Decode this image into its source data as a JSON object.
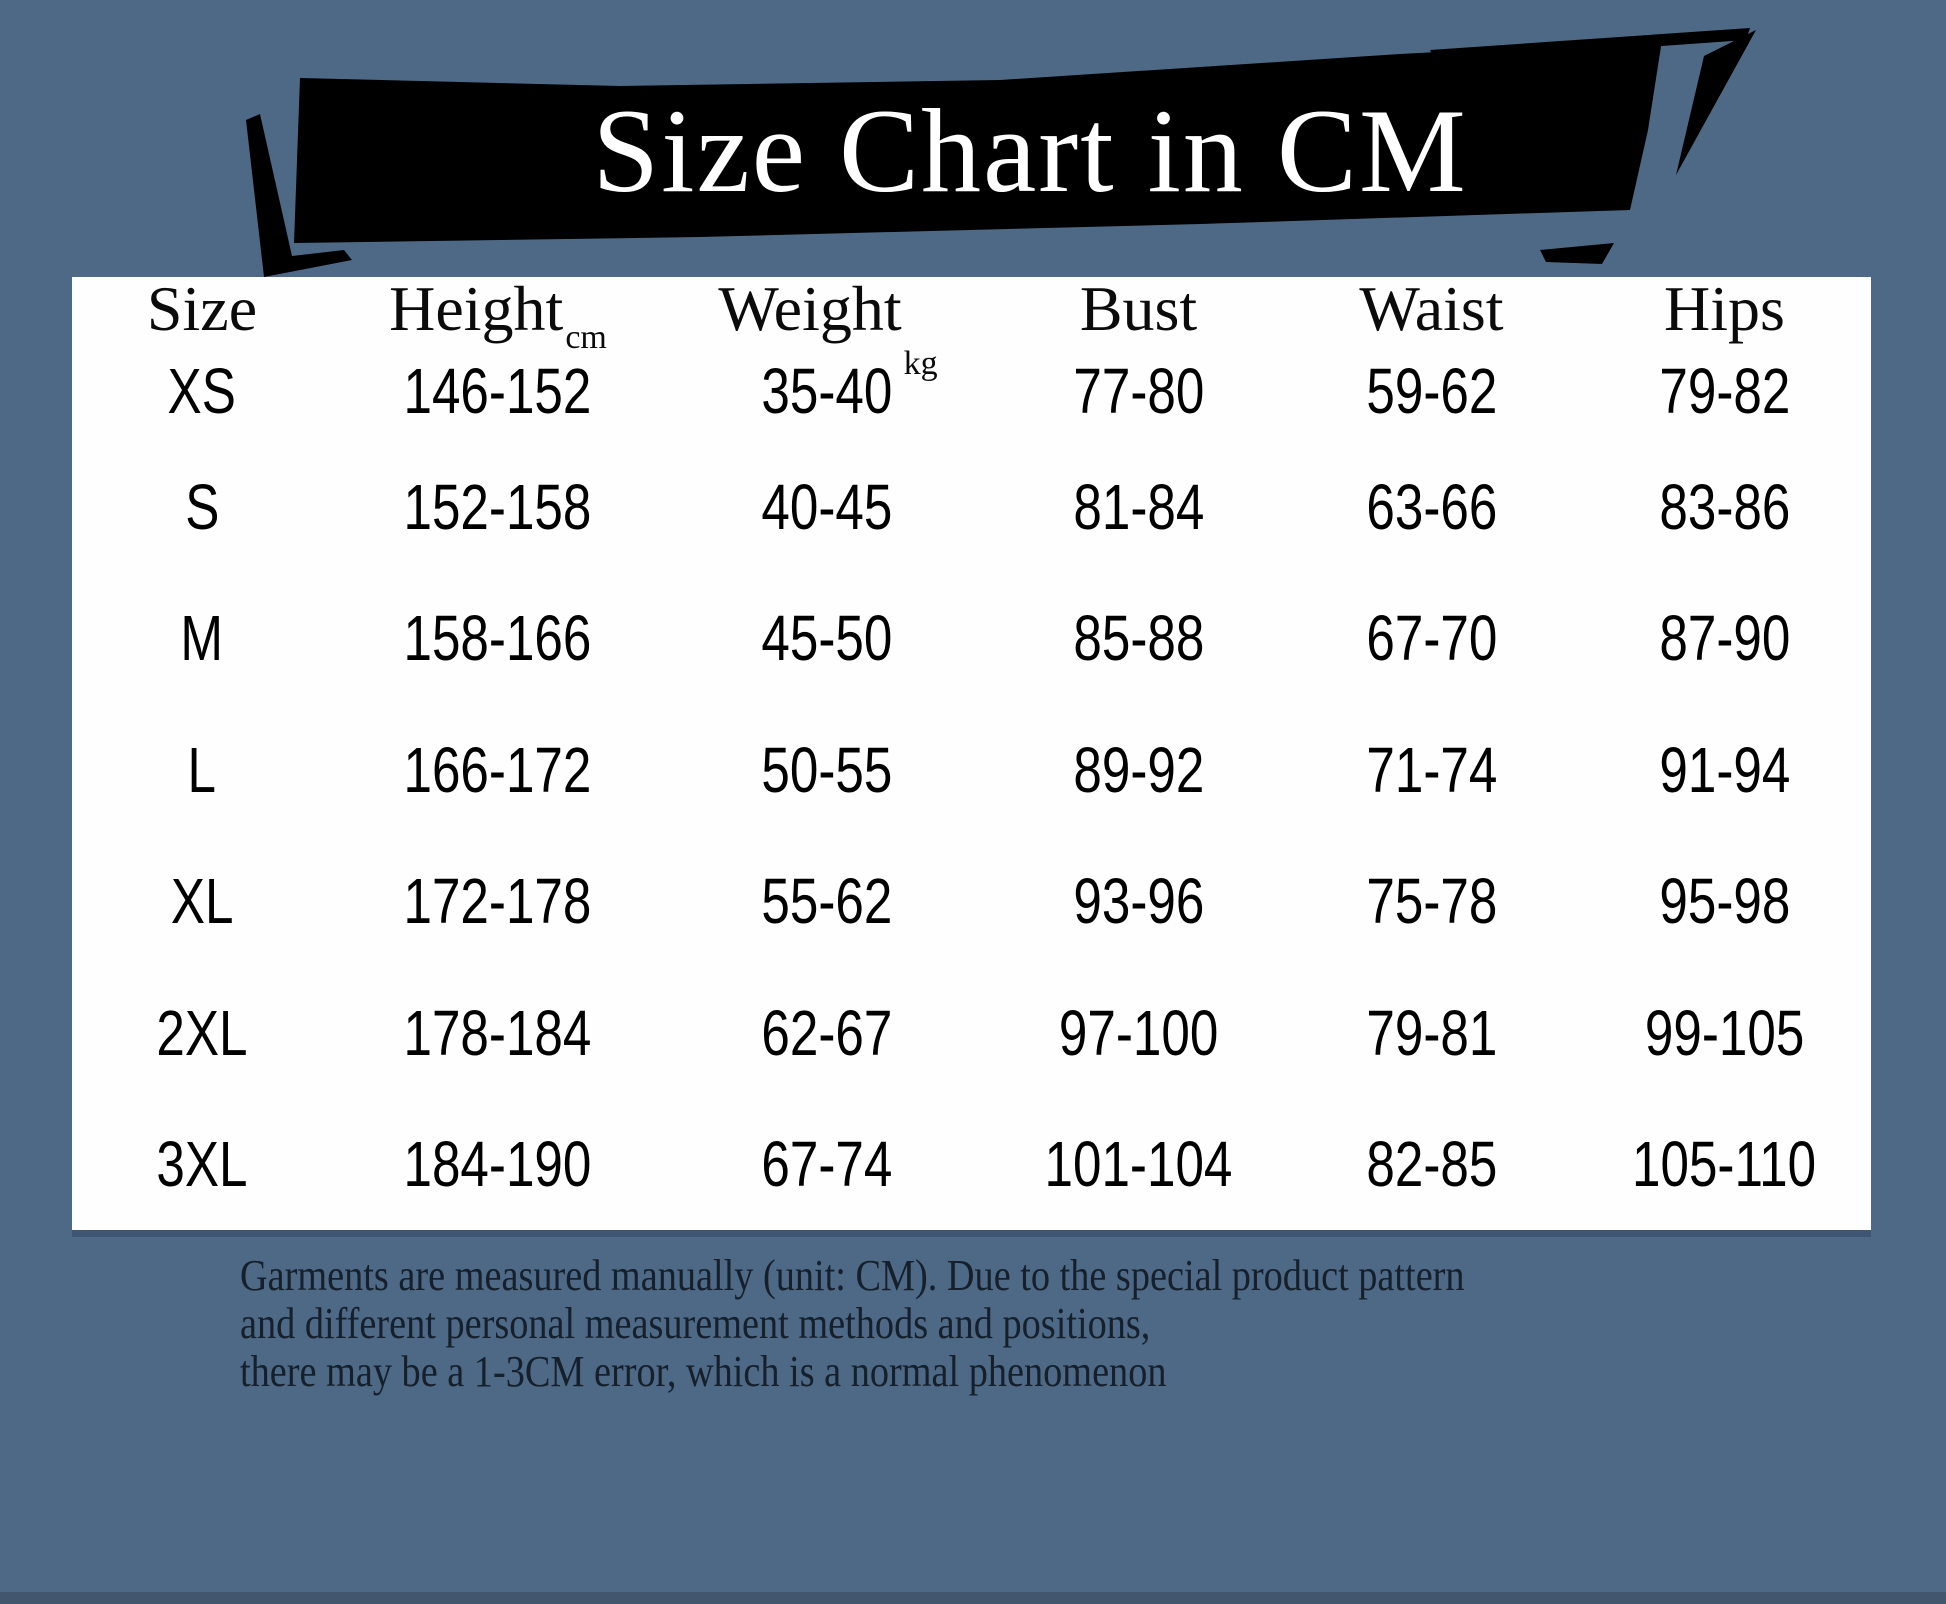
{
  "page": {
    "background_color": "#4d6985",
    "panel_color": "#fefefe",
    "bottom_strip_color": "#42566e",
    "banner_color": "#000000",
    "banner_text_color": "#ffffff"
  },
  "banner": {
    "title": "Size Chart in CM"
  },
  "table": {
    "fields": [
      "size",
      "height",
      "weight",
      "bust",
      "waist",
      "hips"
    ],
    "columns": [
      {
        "label": "Size",
        "unit": ""
      },
      {
        "label": "Height",
        "unit": "cm"
      },
      {
        "label": "Weight",
        "unit": "kg"
      },
      {
        "label": "Bust",
        "unit": ""
      },
      {
        "label": "Waist",
        "unit": ""
      },
      {
        "label": "Hips",
        "unit": ""
      }
    ],
    "rows": [
      {
        "size": "XS",
        "height": "146-152",
        "weight": "35-40",
        "bust": "77-80",
        "waist": "59-62",
        "hips": "79-82"
      },
      {
        "size": "S",
        "height": "152-158",
        "weight": "40-45",
        "bust": "81-84",
        "waist": "63-66",
        "hips": "83-86"
      },
      {
        "size": "M",
        "height": "158-166",
        "weight": "45-50",
        "bust": "85-88",
        "waist": "67-70",
        "hips": "87-90"
      },
      {
        "size": "L",
        "height": "166-172",
        "weight": "50-55",
        "bust": "89-92",
        "waist": "71-74",
        "hips": "91-94"
      },
      {
        "size": "XL",
        "height": "172-178",
        "weight": "55-62",
        "bust": "93-96",
        "waist": "75-78",
        "hips": "95-98"
      },
      {
        "size": "2XL",
        "height": "178-184",
        "weight": "62-67",
        "bust": "97-100",
        "waist": "79-81",
        "hips": "99-105"
      },
      {
        "size": "3XL",
        "height": "184-190",
        "weight": "67-74",
        "bust": "101-104",
        "waist": "82-85",
        "hips": "105-110"
      }
    ]
  },
  "note": {
    "lines": [
      "Garments are measured manually (unit: CM). Due to the special product pattern",
      "and different personal measurement methods and positions,",
      "there may be a 1-3CM error, which is a normal phenomenon"
    ]
  }
}
